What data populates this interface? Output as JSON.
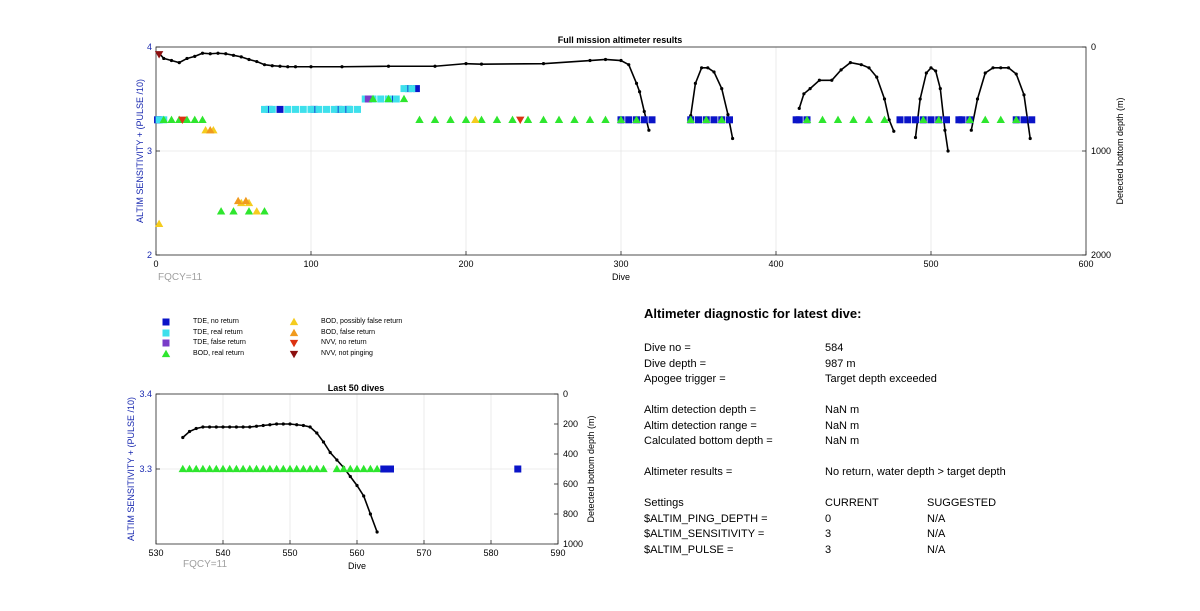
{
  "colors": {
    "tde_no_return": "#0a14c8",
    "tde_real_return": "#3ee0ec",
    "tde_false_return": "#7a3cc8",
    "bod_real_return": "#2ee62e",
    "bod_possibly_false": "#f5cc1e",
    "bod_false_return": "#f09a1e",
    "nvv_no_return": "#dc3212",
    "nvv_not_pinging": "#8c1010",
    "altim_axis": "#1a2ab0",
    "depth_line": "#000000"
  },
  "main_chart": {
    "title": "Full mission altimeter results",
    "xlabel": "Dive",
    "ylabel_left": "ALTIM SENSITIVITY + (PULSE /10)",
    "ylabel_right": "Detected bottom depth (m)",
    "xlim": [
      0,
      600
    ],
    "xticks": [
      "0",
      "100",
      "200",
      "300",
      "400",
      "500",
      "600"
    ],
    "ylim_left": [
      2,
      4
    ],
    "yticks_left": [
      "2",
      "3",
      "4"
    ],
    "ylim_right": [
      0,
      2000
    ],
    "yticks_right": [
      "0",
      "1000",
      "2000"
    ],
    "note": "FQCY=11"
  },
  "zoom_chart": {
    "title": "Last 50 dives",
    "xlabel": "Dive",
    "ylabel_left": "ALTIM SENSITIVITY + (PULSE /10)",
    "ylabel_right": "Detected bottom depth (m)",
    "xlim": [
      530,
      590
    ],
    "xticks": [
      "530",
      "540",
      "550",
      "560",
      "570",
      "580",
      "590"
    ],
    "ylim_left": [
      3.2,
      3.4
    ],
    "yticks_left": [
      "3.3",
      "3.4"
    ],
    "ylim_right": [
      0,
      1000
    ],
    "yticks_right": [
      "0",
      "200",
      "400",
      "600",
      "800",
      "1000"
    ],
    "note": "FQCY=11"
  },
  "legend": [
    {
      "label": "TDE, no return",
      "shape": "square",
      "color": "#0a14c8"
    },
    {
      "label": "TDE, real return",
      "shape": "square",
      "color": "#3ee0ec"
    },
    {
      "label": "TDE, false return",
      "shape": "square",
      "color": "#7a3cc8"
    },
    {
      "label": "BOD, real return",
      "shape": "triangle-up",
      "color": "#2ee62e"
    },
    {
      "label": "BOD, possibly false return",
      "shape": "triangle-up",
      "color": "#f5cc1e"
    },
    {
      "label": "BOD, false return",
      "shape": "triangle-up",
      "color": "#f09a1e"
    },
    {
      "label": "NVV, no return",
      "shape": "triangle-down",
      "color": "#dc3212"
    },
    {
      "label": "NVV, not pinging",
      "shape": "triangle-down",
      "color": "#8c1010"
    }
  ],
  "chart_data": [
    {
      "type": "scatter",
      "title": "Full mission altimeter results",
      "xlabel": "Dive",
      "ylabel": "ALTIM SENSITIVITY + (PULSE /10)",
      "y2label": "Detected bottom depth (m)",
      "xlim": [
        0,
        600
      ],
      "ylim": [
        2,
        4
      ],
      "y2lim": [
        0,
        2000
      ],
      "grid": true,
      "series": [
        {
          "name": "TDE, no return",
          "marker": "square",
          "x": [
            1,
            2,
            73,
            80,
            102,
            118,
            124,
            153,
            163,
            168,
            300,
            305,
            310,
            315,
            320,
            345,
            350,
            355,
            360,
            365,
            370,
            413,
            415,
            420,
            480,
            485,
            490,
            495,
            500,
            505,
            510,
            518,
            520,
            525,
            555,
            560,
            565
          ],
          "y": [
            3.3,
            3.3,
            3.4,
            3.4,
            3.4,
            3.4,
            3.4,
            3.5,
            3.6,
            3.6,
            3.3,
            3.3,
            3.3,
            3.3,
            3.3,
            3.3,
            3.3,
            3.3,
            3.3,
            3.3,
            3.3,
            3.3,
            3.3,
            3.3,
            3.3,
            3.3,
            3.3,
            3.3,
            3.3,
            3.3,
            3.3,
            3.3,
            3.3,
            3.3,
            3.3,
            3.3,
            3.3
          ]
        },
        {
          "name": "TDE, real return",
          "marker": "square",
          "x": [
            70,
            75,
            85,
            90,
            95,
            100,
            105,
            110,
            115,
            120,
            125,
            130,
            135,
            140,
            145,
            150,
            155,
            160,
            165,
            2,
            5
          ],
          "y": [
            3.4,
            3.4,
            3.4,
            3.4,
            3.4,
            3.4,
            3.4,
            3.4,
            3.4,
            3.4,
            3.4,
            3.4,
            3.5,
            3.5,
            3.5,
            3.5,
            3.5,
            3.6,
            3.6,
            3.3,
            3.3
          ]
        },
        {
          "name": "TDE, false return",
          "marker": "square",
          "x": [
            137
          ],
          "y": [
            3.5
          ]
        },
        {
          "name": "BOD, real return",
          "marker": "triangle-up",
          "x": [
            5,
            10,
            15,
            20,
            25,
            30,
            42,
            50,
            60,
            70,
            140,
            150,
            160,
            170,
            180,
            190,
            200,
            210,
            220,
            230,
            240,
            250,
            260,
            270,
            280,
            290,
            300,
            310,
            345,
            355,
            365,
            420,
            430,
            440,
            450,
            460,
            470,
            495,
            505,
            525,
            535,
            545,
            555
          ],
          "y": [
            3.3,
            3.3,
            3.3,
            3.3,
            3.3,
            3.3,
            2.42,
            2.42,
            2.42,
            2.42,
            3.5,
            3.5,
            3.5,
            3.3,
            3.3,
            3.3,
            3.3,
            3.3,
            3.3,
            3.3,
            3.3,
            3.3,
            3.3,
            3.3,
            3.3,
            3.3,
            3.3,
            3.3,
            3.3,
            3.3,
            3.3,
            3.3,
            3.3,
            3.3,
            3.3,
            3.3,
            3.3,
            3.3,
            3.3,
            3.3,
            3.3,
            3.3,
            3.3
          ]
        },
        {
          "name": "BOD, possibly false return",
          "marker": "triangle-up",
          "x": [
            2,
            32,
            37,
            55,
            60,
            65,
            206
          ],
          "y": [
            2.3,
            3.2,
            3.2,
            2.5,
            2.5,
            2.42,
            3.3
          ]
        },
        {
          "name": "BOD, false return",
          "marker": "triangle-up",
          "x": [
            53,
            58,
            35
          ],
          "y": [
            2.52,
            2.52,
            3.2
          ]
        },
        {
          "name": "NVV, no return",
          "marker": "triangle-down",
          "x": [
            17,
            235
          ],
          "y": [
            3.3,
            3.3
          ]
        },
        {
          "name": "NVV, not pinging",
          "marker": "triangle-down",
          "x": [
            2
          ],
          "y": [
            3.93
          ]
        },
        {
          "name": "Detected bottom depth",
          "axis": "right",
          "line": true,
          "segments": [
            {
              "x": [
                2,
                5,
                10,
                15,
                20,
                25,
                30,
                35,
                40,
                45,
                50,
                55,
                60,
                65,
                70,
                75,
                80,
                85,
                90,
                100,
                120,
                150,
                180,
                200,
                210,
                250,
                280,
                290,
                300,
                305,
                310,
                312,
                315,
                318
              ],
              "y": [
                60,
                110,
                130,
                150,
                110,
                90,
                60,
                65,
                60,
                65,
                80,
                95,
                120,
                140,
                170,
                180,
                185,
                190,
                190,
                190,
                190,
                185,
                185,
                160,
                165,
                160,
                130,
                120,
                130,
                170,
                350,
                430,
                620,
                800
              ]
            },
            {
              "x": [
                345,
                348,
                352,
                356,
                360,
                365,
                369,
                372
              ],
              "y": [
                660,
                350,
                200,
                200,
                240,
                400,
                650,
                880
              ]
            },
            {
              "x": [
                415,
                418,
                422,
                428,
                436,
                442,
                448,
                455,
                460,
                465,
                470,
                473,
                476
              ],
              "y": [
                590,
                450,
                400,
                320,
                320,
                220,
                150,
                170,
                200,
                290,
                500,
                700,
                810
              ]
            },
            {
              "x": [
                490,
                493,
                497,
                500,
                503,
                506,
                509,
                511
              ],
              "y": [
                870,
                500,
                250,
                200,
                230,
                400,
                800,
                1000
              ]
            },
            {
              "x": [
                526,
                530,
                535,
                540,
                545,
                550,
                555,
                560,
                564
              ],
              "y": [
                800,
                500,
                250,
                200,
                200,
                200,
                260,
                460,
                880
              ]
            }
          ]
        }
      ]
    },
    {
      "type": "scatter",
      "title": "Last 50 dives",
      "xlabel": "Dive",
      "ylabel": "ALTIM SENSITIVITY + (PULSE /10)",
      "y2label": "Detected bottom depth (m)",
      "xlim": [
        530,
        590
      ],
      "ylim": [
        3.2,
        3.4
      ],
      "y2lim": [
        0,
        1000
      ],
      "grid": true,
      "series": [
        {
          "name": "BOD, real return",
          "marker": "triangle-up",
          "x": [
            534,
            535,
            536,
            537,
            538,
            539,
            540,
            541,
            542,
            543,
            544,
            545,
            546,
            547,
            548,
            549,
            550,
            551,
            552,
            553,
            554,
            555,
            557,
            558,
            559,
            560,
            561,
            562,
            563
          ],
          "y": [
            3.3,
            3.3,
            3.3,
            3.3,
            3.3,
            3.3,
            3.3,
            3.3,
            3.3,
            3.3,
            3.3,
            3.3,
            3.3,
            3.3,
            3.3,
            3.3,
            3.3,
            3.3,
            3.3,
            3.3,
            3.3,
            3.3,
            3.3,
            3.3,
            3.3,
            3.3,
            3.3,
            3.3,
            3.3
          ]
        },
        {
          "name": "TDE, no return",
          "marker": "square",
          "x": [
            564,
            565,
            584
          ],
          "y": [
            3.3,
            3.3,
            3.3
          ]
        },
        {
          "name": "Detected bottom depth",
          "axis": "right",
          "line": true,
          "x": [
            534,
            535,
            536,
            537,
            538,
            539,
            540,
            541,
            542,
            543,
            544,
            545,
            546,
            547,
            548,
            549,
            550,
            551,
            552,
            553,
            554,
            555,
            556,
            557,
            558,
            559,
            560,
            561,
            562,
            563
          ],
          "y": [
            290,
            250,
            230,
            220,
            220,
            220,
            220,
            220,
            220,
            220,
            220,
            215,
            210,
            205,
            200,
            200,
            200,
            205,
            210,
            220,
            260,
            320,
            390,
            440,
            490,
            550,
            610,
            680,
            800,
            920
          ]
        }
      ]
    }
  ],
  "diagnostic": {
    "title": "Altimeter diagnostic for latest dive:",
    "rows": [
      {
        "label": "Dive no =",
        "value": "584"
      },
      {
        "label": "Dive depth =",
        "value": "987 m"
      },
      {
        "label": "Apogee trigger =",
        "value": "Target depth exceeded"
      },
      {
        "label": "Altim detection depth =",
        "value": "NaN m"
      },
      {
        "label": "Altim detection range =",
        "value": "NaN m"
      },
      {
        "label": "Calculated bottom depth =",
        "value": "NaN m"
      },
      {
        "label": "Altimeter results =",
        "value": "No return, water depth > target depth"
      }
    ],
    "settings": {
      "header": {
        "label": "Settings",
        "current": "CURRENT",
        "suggested": "SUGGESTED"
      },
      "rows": [
        {
          "label": "$ALTIM_PING_DEPTH =",
          "current": "0",
          "suggested": "N/A"
        },
        {
          "label": "$ALTIM_SENSITIVITY =",
          "current": "3",
          "suggested": "N/A"
        },
        {
          "label": "$ALTIM_PULSE =",
          "current": "3",
          "suggested": "N/A"
        }
      ]
    }
  }
}
